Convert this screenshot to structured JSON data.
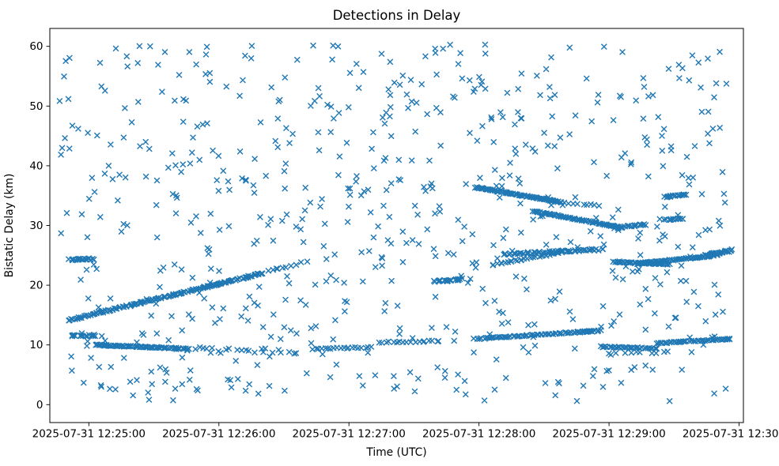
{
  "figure": {
    "title": "Detections in Delay",
    "xlabel": "Time (UTC)",
    "ylabel": "Bistatic Delay (km)"
  },
  "chart_data": {
    "type": "scatter",
    "title": "Detections in Delay",
    "xlabel": "Time (UTC)",
    "ylabel": "Bistatic Delay (km)",
    "marker": "x",
    "marker_color": "#1f77b4",
    "grid": false,
    "legend": "none",
    "x_domain_seconds": [
      -18,
      302
    ],
    "y_domain": [
      -3,
      63
    ],
    "x_ticks": [
      {
        "t": 0,
        "label": "2025-07-31 12:25:00"
      },
      {
        "t": 60,
        "label": "2025-07-31 12:26:00"
      },
      {
        "t": 120,
        "label": "2025-07-31 12:27:00"
      },
      {
        "t": 180,
        "label": "2025-07-31 12:28:00"
      },
      {
        "t": 240,
        "label": "2025-07-31 12:29:00"
      },
      {
        "t": 300,
        "label": "2025-07-31 12:30:00"
      }
    ],
    "y_ticks": [
      {
        "d": 0,
        "label": "0"
      },
      {
        "d": 10,
        "label": "10"
      },
      {
        "d": 20,
        "label": "20"
      },
      {
        "d": 30,
        "label": "30"
      },
      {
        "d": 40,
        "label": "40"
      },
      {
        "d": 50,
        "label": "50"
      },
      {
        "d": 60,
        "label": "60"
      }
    ],
    "noise": {
      "seed": 42,
      "count": 680,
      "t_range": [
        -14,
        296
      ],
      "d_range": [
        0.6,
        60.3
      ]
    },
    "tracks": [
      {
        "t0": -8,
        "t1": 2,
        "d0": 24.3,
        "d1": 24.4,
        "n": 20,
        "jitter": 0.12,
        "tj": 4
      },
      {
        "t0": -8,
        "t1": 4,
        "d0": 11.5,
        "d1": 11.6,
        "n": 18,
        "jitter": 0.15,
        "tj": 4
      },
      {
        "t0": -9,
        "t1": 80,
        "d0": 14.15,
        "d1": 22.0,
        "n": 150,
        "jitter": 0.1,
        "tj": 1.5
      },
      {
        "t0": 80,
        "t1": 101,
        "d0": 22.1,
        "d1": 23.9,
        "n": 10,
        "jitter": 0.18,
        "tj": 2
      },
      {
        "t0": 3,
        "t1": 46,
        "d0": 10.0,
        "d1": 9.35,
        "n": 85,
        "jitter": 0.09,
        "tj": 1.2
      },
      {
        "t0": 46,
        "t1": 96,
        "d0": 9.3,
        "d1": 8.85,
        "n": 22,
        "jitter": 0.35,
        "tj": 2.5
      },
      {
        "t0": 103,
        "t1": 130,
        "d0": 9.35,
        "d1": 9.6,
        "n": 20,
        "jitter": 0.1,
        "tj": 1.5
      },
      {
        "t0": 134,
        "t1": 162,
        "d0": 10.45,
        "d1": 10.65,
        "n": 18,
        "jitter": 0.12,
        "tj": 1.5
      },
      {
        "t0": 160,
        "t1": 172,
        "d0": 20.6,
        "d1": 21.0,
        "n": 24,
        "jitter": 0.15,
        "tj": 2
      },
      {
        "t0": 178,
        "t1": 218,
        "d0": 36.4,
        "d1": 33.9,
        "n": 85,
        "jitter": 0.08,
        "tj": 1
      },
      {
        "t0": 218,
        "t1": 236,
        "d0": 33.9,
        "d1": 33.3,
        "n": 10,
        "jitter": 0.12,
        "tj": 2
      },
      {
        "t0": 205,
        "t1": 245,
        "d0": 32.4,
        "d1": 29.7,
        "n": 70,
        "jitter": 0.08,
        "tj": 1
      },
      {
        "t0": 243,
        "t1": 257,
        "d0": 29.6,
        "d1": 30.2,
        "n": 22,
        "jitter": 0.12,
        "tj": 2
      },
      {
        "t0": 191,
        "t1": 237,
        "d0": 25.2,
        "d1": 26.0,
        "n": 60,
        "jitter": 0.15,
        "tj": 1.5
      },
      {
        "t0": 186,
        "t1": 218,
        "d0": 23.4,
        "d1": 25.5,
        "n": 28,
        "jitter": 0.12,
        "tj": 1.5
      },
      {
        "t0": 242,
        "t1": 268,
        "d0": 23.9,
        "d1": 23.5,
        "n": 40,
        "jitter": 0.07,
        "tj": 1
      },
      {
        "t0": 252,
        "t1": 290,
        "d0": 23.6,
        "d1": 25.0,
        "n": 55,
        "jitter": 0.09,
        "tj": 1
      },
      {
        "t0": 284,
        "t1": 297,
        "d0": 24.9,
        "d1": 25.9,
        "n": 28,
        "jitter": 0.2,
        "tj": 2
      },
      {
        "t0": 266,
        "t1": 276,
        "d0": 34.8,
        "d1": 35.2,
        "n": 16,
        "jitter": 0.12,
        "tj": 1.5
      },
      {
        "t0": 266,
        "t1": 274,
        "d0": 30.9,
        "d1": 31.2,
        "n": 14,
        "jitter": 0.1,
        "tj": 1.5
      },
      {
        "t0": 178,
        "t1": 232,
        "d0": 11.0,
        "d1": 12.3,
        "n": 65,
        "jitter": 0.09,
        "tj": 1
      },
      {
        "t0": 226,
        "t1": 236,
        "d0": 12.15,
        "d1": 12.4,
        "n": 12,
        "jitter": 0.1,
        "tj": 1.5
      },
      {
        "t0": 236,
        "t1": 262,
        "d0": 9.7,
        "d1": 9.4,
        "n": 32,
        "jitter": 0.1,
        "tj": 1
      },
      {
        "t0": 262,
        "t1": 296,
        "d0": 10.3,
        "d1": 11.0,
        "n": 50,
        "jitter": 0.08,
        "tj": 1
      },
      {
        "t0": 240,
        "t1": 268,
        "d0": 8.5,
        "d1": 8.9,
        "n": 10,
        "jitter": 0.3,
        "tj": 3
      }
    ]
  }
}
